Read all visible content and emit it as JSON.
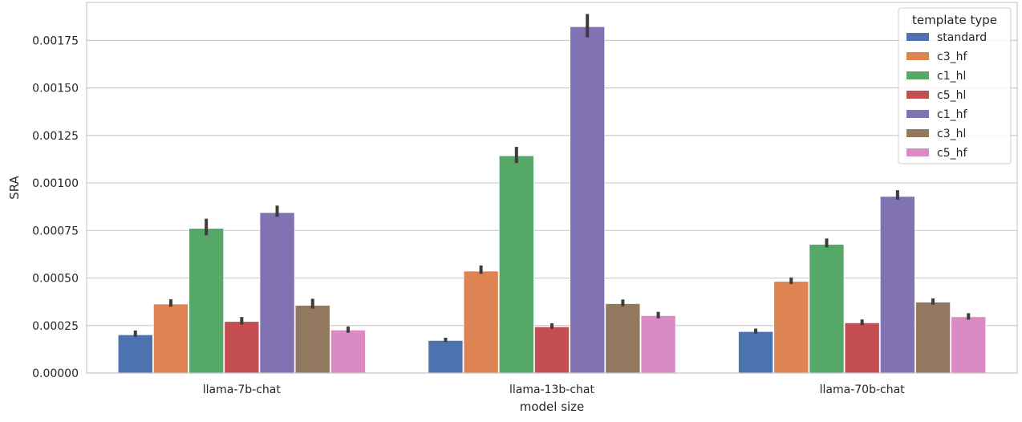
{
  "chart_data": {
    "type": "bar",
    "xlabel": "model size",
    "ylabel": "SRA",
    "ylim": [
      0,
      0.00195
    ],
    "yticks": [
      0,
      0.00025,
      0.0005,
      0.00075,
      0.001,
      0.00125,
      0.0015,
      0.00175
    ],
    "ytick_labels": [
      "0.00000",
      "0.00025",
      "0.00050",
      "0.00075",
      "0.00100",
      "0.00125",
      "0.00150",
      "0.00175"
    ],
    "grid": true,
    "legend": {
      "title": "template type",
      "position": "top-right"
    },
    "categories": [
      "llama-7b-chat",
      "llama-13b-chat",
      "llama-70b-chat"
    ],
    "series": [
      {
        "name": "standard",
        "color": "#4c72b0",
        "values": [
          0.000201,
          0.000171,
          0.000218
        ],
        "err_low": [
          0.000191,
          0.000163,
          0.000207
        ],
        "err_high": [
          0.000224,
          0.000186,
          0.000234
        ]
      },
      {
        "name": "c3_hf",
        "color": "#dd8452",
        "values": [
          0.000363,
          0.000536,
          0.000482
        ],
        "err_low": [
          0.000349,
          0.000522,
          0.000468
        ],
        "err_high": [
          0.000388,
          0.000566,
          0.000503
        ]
      },
      {
        "name": "c1_hl",
        "color": "#55a868",
        "values": [
          0.000761,
          0.001143,
          0.000677
        ],
        "err_low": [
          0.000725,
          0.001105,
          0.000661
        ],
        "err_high": [
          0.000812,
          0.00119,
          0.000708
        ]
      },
      {
        "name": "c5_hl",
        "color": "#c44e52",
        "values": [
          0.000271,
          0.000243,
          0.000264
        ],
        "err_low": [
          0.000255,
          0.000232,
          0.000252
        ],
        "err_high": [
          0.000295,
          0.000262,
          0.000282
        ]
      },
      {
        "name": "c1_hf",
        "color": "#8172b3",
        "values": [
          0.000844,
          0.001822,
          0.000929
        ],
        "err_low": [
          0.000822,
          0.001766,
          0.000912
        ],
        "err_high": [
          0.000881,
          0.001889,
          0.000962
        ]
      },
      {
        "name": "c3_hl",
        "color": "#937860",
        "values": [
          0.000356,
          0.000365,
          0.000373
        ],
        "err_low": [
          0.000339,
          0.00035,
          0.00036
        ],
        "err_high": [
          0.000391,
          0.000387,
          0.000393
        ]
      },
      {
        "name": "c5_hf",
        "color": "#da8bc3",
        "values": [
          0.000226,
          0.000302,
          0.000296
        ],
        "err_low": [
          0.000212,
          0.000288,
          0.000281
        ],
        "err_high": [
          0.000245,
          0.000322,
          0.000315
        ]
      }
    ]
  }
}
